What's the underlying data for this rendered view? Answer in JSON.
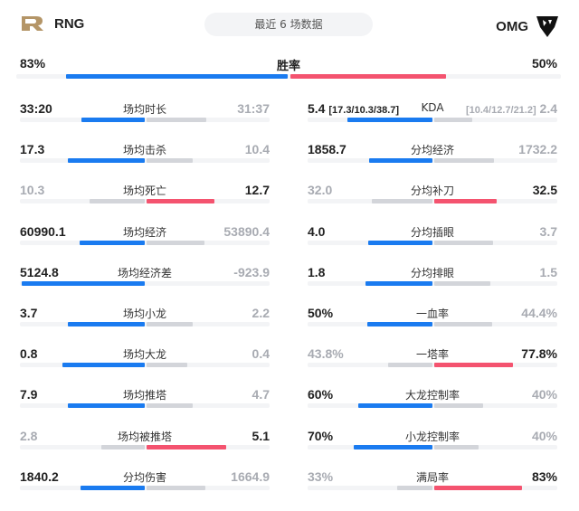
{
  "header": {
    "left_team": "RNG",
    "right_team": "OMG",
    "title": "最近 6 场数据",
    "left_logo": "rng-logo",
    "right_logo": "omg-logo"
  },
  "colors": {
    "blue": "#1a7bf0",
    "red": "#f4536f",
    "gray": "#d3d5da",
    "gold": "#b49567"
  },
  "win_rate": {
    "label": "胜率",
    "left": "83%",
    "right": "50%"
  },
  "left_stats": [
    {
      "label": "场均时长",
      "a": "33:20",
      "b": "31:37",
      "winner": "a"
    },
    {
      "label": "场均击杀",
      "a": "17.3",
      "b": "10.4",
      "winner": "a"
    },
    {
      "label": "场均死亡",
      "a": "10.3",
      "b": "12.7",
      "winner": "b"
    },
    {
      "label": "场均经济",
      "a": "60990.1",
      "b": "53890.4",
      "winner": "a"
    },
    {
      "label": "场均经济差",
      "a": "5124.8",
      "b": "-923.9",
      "winner": "a"
    },
    {
      "label": "场均小龙",
      "a": "3.7",
      "b": "2.2",
      "winner": "a"
    },
    {
      "label": "场均大龙",
      "a": "0.8",
      "b": "0.4",
      "winner": "a"
    },
    {
      "label": "场均推塔",
      "a": "7.9",
      "b": "4.7",
      "winner": "a"
    },
    {
      "label": "场均被推塔",
      "a": "2.8",
      "b": "5.1",
      "winner": "b"
    },
    {
      "label": "分均伤害",
      "a": "1840.2",
      "b": "1664.9",
      "winner": "a"
    }
  ],
  "right_stats": [
    {
      "label": "KDA",
      "a": "5.4",
      "a_extra": "[17.3/10.3/38.7]",
      "b": "2.4",
      "b_extra": "[10.4/12.7/21.2]",
      "winner": "a"
    },
    {
      "label": "分均经济",
      "a": "1858.7",
      "b": "1732.2",
      "winner": "a"
    },
    {
      "label": "分均补刀",
      "a": "32.0",
      "b": "32.5",
      "winner": "b"
    },
    {
      "label": "分均插眼",
      "a": "4.0",
      "b": "3.7",
      "winner": "a"
    },
    {
      "label": "分均排眼",
      "a": "1.8",
      "b": "1.5",
      "winner": "a"
    },
    {
      "label": "一血率",
      "a": "50%",
      "b": "44.4%",
      "winner": "a"
    },
    {
      "label": "一塔率",
      "a": "43.8%",
      "b": "77.8%",
      "winner": "b"
    },
    {
      "label": "大龙控制率",
      "a": "60%",
      "b": "40%",
      "winner": "a"
    },
    {
      "label": "小龙控制率",
      "a": "70%",
      "b": "40%",
      "winner": "a"
    },
    {
      "label": "满局率",
      "a": "33%",
      "b": "83%",
      "winner": "b"
    }
  ]
}
